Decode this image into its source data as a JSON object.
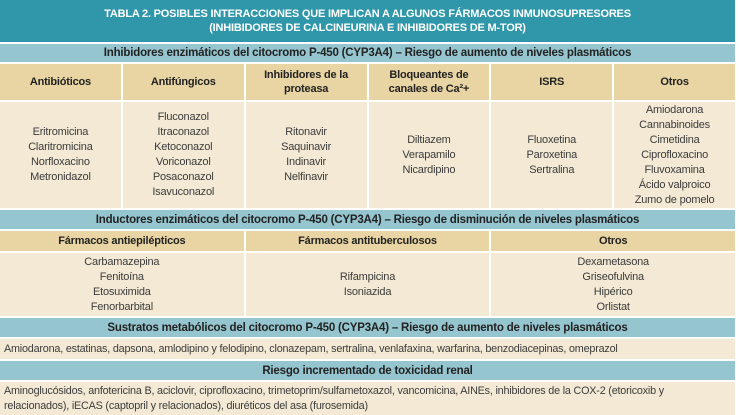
{
  "colors": {
    "title_bg": "#2F97A9",
    "title_text": "#FFFFFF",
    "section_bg": "#95C5CF",
    "colhead_bg": "#E9D5A3",
    "cell_bg": "#F3E9D4",
    "head_text": "#222222",
    "body_text": "#3C3C3C",
    "divider": "#FFFFFF"
  },
  "title": {
    "line1": "TABLA 2. POSIBLES INTERACCIONES QUE IMPLICAN A ALGUNOS FÁRMACOS INMUNOSUPRESORES",
    "line2": "(INHIBIDORES DE CALCINEURINA E INHIBIDORES DE M-TOR)"
  },
  "sections": {
    "inhibidores": {
      "header": "Inhibidores enzimáticos del citocromo P-450 (CYP3A4) – Riesgo de aumento de niveles plasmáticos",
      "columns": [
        {
          "label": "Antibióticos",
          "items": [
            "Eritromicina",
            "Claritromicina",
            "Norfloxacino",
            "Metronidazol"
          ]
        },
        {
          "label": "Antifúngicos",
          "items": [
            "Fluconazol",
            "Itraconazol",
            "Ketoconazol",
            "Voriconazol",
            "Posaconazol",
            "Isavuconazol"
          ]
        },
        {
          "label": "Inhibidores de la proteasa",
          "items": [
            "Ritonavir",
            "Saquinavir",
            "Indinavir",
            "Nelfinavir"
          ]
        },
        {
          "label": "Bloqueantes de canales de Ca²+",
          "items": [
            "Diltiazem",
            "Verapamilo",
            "Nicardipino"
          ]
        },
        {
          "label": "ISRS",
          "items": [
            "Fluoxetina",
            "Paroxetina",
            "Sertralina"
          ]
        },
        {
          "label": "Otros",
          "items": [
            "Amiodarona",
            "Cannabinoides",
            "Cimetidina",
            "Ciprofloxacino",
            "Fluvoxamina",
            "Ácido valproico",
            "Zumo de pomelo"
          ]
        }
      ]
    },
    "inductores": {
      "header": "Inductores enzimáticos del citocromo P-450 (CYP3A4) – Riesgo de disminución de niveles plasmáticos",
      "columns": [
        {
          "label": "Fármacos antiepilépticos",
          "items": [
            "Carbamazepina",
            "Fenitoína",
            "Etosuximida",
            "Fenorbarbital"
          ]
        },
        {
          "label": "Fármacos antituberculosos",
          "items": [
            "Rifampicina",
            "Isoniazida"
          ]
        },
        {
          "label": "Otros",
          "items": [
            "Dexametasona",
            "Griseofulvina",
            "Hipérico",
            "Orlistat"
          ]
        }
      ]
    },
    "sustratos": {
      "header": "Sustratos metabólicos del citocromo P-450 (CYP3A4) – Riesgo de aumento de niveles plasmáticos",
      "text": "Amiodarona, estatinas, dapsona, amlodipino y felodipino, clonazepam, sertralina, venlafaxina, warfarina, benzodiacepinas, omeprazol"
    },
    "toxicidad": {
      "header": "Riesgo incrementado de toxicidad renal",
      "text": "Aminoglucósidos, anfotericina B, aciclovir, ciprofloxacino, trimetoprim/sulfametoxazol, vancomicina, AINEs, inhibidores de la COX-2 (etoricoxib y relacionados), iECAS (captopril y relacionados), diuréticos del asa (furosemida)"
    }
  }
}
